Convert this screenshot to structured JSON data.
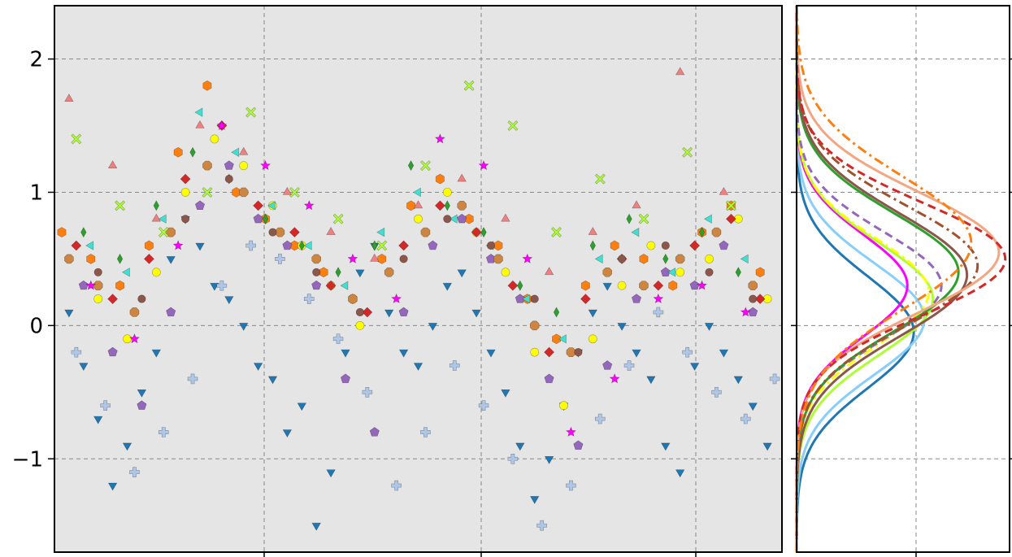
{
  "chart_data": [
    {
      "type": "scatter",
      "title": "",
      "xlabel": "",
      "ylabel": "",
      "ylim": [
        -1.7,
        2.4
      ],
      "grid": true,
      "background": "#e5e5e5",
      "y_ticks": [
        -1,
        0,
        1,
        2
      ],
      "y_tick_labels": [
        "−1",
        "0",
        "1",
        "2"
      ],
      "x_tick_labels": [],
      "series": [
        {
          "color": "#1f77b4",
          "marker": "triangle-down",
          "x": [
            0.02,
            0.04,
            0.06,
            0.08,
            0.1,
            0.12,
            0.14,
            0.16,
            0.18,
            0.2,
            0.22,
            0.24,
            0.26,
            0.28,
            0.3,
            0.32,
            0.34,
            0.36,
            0.38,
            0.4,
            0.42,
            0.44,
            0.46,
            0.48,
            0.5,
            0.52,
            0.54,
            0.56,
            0.58,
            0.6,
            0.62,
            0.64,
            0.66,
            0.68,
            0.7,
            0.72,
            0.74,
            0.76,
            0.78,
            0.8,
            0.82,
            0.84,
            0.86,
            0.88,
            0.9,
            0.92,
            0.94,
            0.96,
            0.98
          ],
          "y": [
            0.1,
            -0.3,
            -0.7,
            -1.2,
            -0.9,
            -0.5,
            -0.2,
            0.5,
            0.8,
            0.6,
            0.3,
            0.2,
            0.0,
            -0.3,
            -0.4,
            -0.8,
            -0.6,
            -1.5,
            -1.1,
            -0.2,
            0.4,
            0.6,
            0.1,
            -0.2,
            -0.3,
            0.0,
            0.3,
            0.4,
            0.1,
            -0.2,
            -0.5,
            -0.9,
            -1.3,
            -1.0,
            -0.6,
            -0.2,
            0.1,
            0.3,
            0.0,
            -0.2,
            -0.4,
            -0.9,
            -1.1,
            -0.3,
            0.0,
            -0.2,
            -0.4,
            -0.6,
            -0.9
          ]
        },
        {
          "color": "#aec7e8",
          "marker": "plus",
          "x": [
            0.03,
            0.07,
            0.11,
            0.15,
            0.19,
            0.23,
            0.27,
            0.31,
            0.35,
            0.39,
            0.43,
            0.47,
            0.51,
            0.55,
            0.59,
            0.63,
            0.67,
            0.71,
            0.75,
            0.79,
            0.83,
            0.87,
            0.91,
            0.95,
            0.99
          ],
          "y": [
            -0.2,
            -0.6,
            -1.1,
            -0.8,
            -0.4,
            0.3,
            0.6,
            0.5,
            0.2,
            -0.1,
            -0.5,
            -1.2,
            -0.8,
            -0.3,
            -0.6,
            -1.0,
            -1.5,
            -1.2,
            -0.7,
            -0.3,
            0.1,
            -0.2,
            -0.5,
            -0.7,
            -0.4
          ]
        },
        {
          "color": "#ff7f0e",
          "marker": "hexagon",
          "x": [
            0.01,
            0.05,
            0.09,
            0.13,
            0.17,
            0.21,
            0.25,
            0.29,
            0.33,
            0.37,
            0.41,
            0.45,
            0.49,
            0.53,
            0.57,
            0.61,
            0.65,
            0.69,
            0.73,
            0.77,
            0.81,
            0.85,
            0.89,
            0.93,
            0.97
          ],
          "y": [
            0.7,
            0.5,
            0.3,
            0.6,
            1.3,
            1.8,
            1.0,
            0.8,
            0.6,
            0.4,
            0.2,
            0.5,
            0.9,
            1.1,
            0.8,
            0.6,
            0.2,
            -0.1,
            0.3,
            0.6,
            0.5,
            0.3,
            0.7,
            0.9,
            0.4
          ]
        },
        {
          "color": "#ffff00",
          "marker": "circle",
          "x": [
            0.02,
            0.06,
            0.1,
            0.14,
            0.18,
            0.22,
            0.26,
            0.3,
            0.34,
            0.38,
            0.42,
            0.46,
            0.5,
            0.54,
            0.58,
            0.62,
            0.66,
            0.7,
            0.74,
            0.78,
            0.82,
            0.86,
            0.9,
            0.94,
            0.98
          ],
          "y": [
            0.5,
            0.2,
            -0.1,
            0.4,
            1.0,
            1.4,
            1.2,
            0.9,
            0.6,
            0.3,
            0.0,
            0.4,
            0.8,
            1.0,
            0.7,
            0.4,
            -0.2,
            -0.6,
            -0.1,
            0.3,
            0.6,
            0.4,
            0.5,
            0.8,
            0.2
          ]
        },
        {
          "color": "#9467bd",
          "marker": "pentagon",
          "x": [
            0.04,
            0.08,
            0.12,
            0.16,
            0.2,
            0.24,
            0.28,
            0.32,
            0.36,
            0.4,
            0.44,
            0.48,
            0.52,
            0.56,
            0.6,
            0.64,
            0.68,
            0.72,
            0.76,
            0.8,
            0.84,
            0.88,
            0.92,
            0.96
          ],
          "y": [
            0.3,
            -0.2,
            -0.6,
            0.1,
            0.9,
            1.2,
            0.8,
            0.6,
            0.3,
            -0.4,
            -0.8,
            0.1,
            0.6,
            0.8,
            0.5,
            0.2,
            -0.4,
            -0.9,
            -0.3,
            0.2,
            0.4,
            0.3,
            0.6,
            0.1
          ]
        },
        {
          "color": "#d62728",
          "marker": "diamond",
          "x": [
            0.03,
            0.08,
            0.13,
            0.18,
            0.23,
            0.28,
            0.33,
            0.38,
            0.43,
            0.48,
            0.53,
            0.58,
            0.63,
            0.68,
            0.73,
            0.78,
            0.83,
            0.88,
            0.93,
            0.97
          ],
          "y": [
            0.6,
            0.2,
            0.5,
            1.1,
            1.5,
            0.9,
            0.7,
            0.3,
            0.1,
            0.6,
            0.9,
            0.7,
            0.3,
            -0.2,
            0.2,
            0.5,
            0.3,
            0.6,
            0.8,
            0.2
          ]
        },
        {
          "color": "#cd853f",
          "marker": "octagon",
          "x": [
            0.02,
            0.06,
            0.11,
            0.16,
            0.21,
            0.26,
            0.31,
            0.36,
            0.41,
            0.46,
            0.51,
            0.56,
            0.61,
            0.66,
            0.71,
            0.76,
            0.81,
            0.86,
            0.91,
            0.96
          ],
          "y": [
            0.5,
            0.3,
            0.1,
            0.7,
            1.2,
            1.0,
            0.7,
            0.5,
            0.2,
            0.4,
            0.7,
            0.9,
            0.5,
            0.0,
            -0.2,
            0.4,
            0.3,
            0.5,
            0.7,
            0.3
          ]
        },
        {
          "color": "#40e0d0",
          "marker": "triangle-left",
          "x": [
            0.05,
            0.1,
            0.15,
            0.2,
            0.25,
            0.3,
            0.35,
            0.4,
            0.45,
            0.5,
            0.55,
            0.6,
            0.65,
            0.7,
            0.75,
            0.8,
            0.85,
            0.9,
            0.95
          ],
          "y": [
            0.6,
            0.4,
            0.8,
            1.6,
            1.3,
            0.9,
            0.6,
            0.3,
            0.7,
            1.0,
            0.8,
            0.6,
            0.2,
            -0.1,
            0.5,
            0.7,
            0.4,
            0.8,
            0.5
          ]
        },
        {
          "color": "#2ca02c",
          "marker": "thin-diamond",
          "x": [
            0.04,
            0.09,
            0.14,
            0.19,
            0.24,
            0.29,
            0.34,
            0.39,
            0.44,
            0.49,
            0.54,
            0.59,
            0.64,
            0.69,
            0.74,
            0.79,
            0.84,
            0.89,
            0.94
          ],
          "y": [
            0.7,
            0.5,
            0.9,
            1.3,
            1.1,
            0.8,
            0.6,
            0.4,
            0.6,
            1.2,
            0.9,
            0.7,
            0.3,
            0.1,
            0.6,
            0.8,
            0.5,
            0.7,
            0.4
          ]
        },
        {
          "color": "#8c564b",
          "marker": "club",
          "x": [
            0.06,
            0.12,
            0.18,
            0.24,
            0.3,
            0.36,
            0.42,
            0.48,
            0.54,
            0.6,
            0.66,
            0.72,
            0.78,
            0.84,
            0.9,
            0.96
          ],
          "y": [
            0.4,
            0.2,
            0.8,
            1.1,
            0.7,
            0.4,
            0.1,
            0.5,
            0.8,
            0.6,
            0.2,
            -0.2,
            0.5,
            0.6,
            0.4,
            0.2
          ]
        },
        {
          "color": "#ff00ff",
          "marker": "star",
          "x": [
            0.05,
            0.11,
            0.17,
            0.23,
            0.29,
            0.35,
            0.41,
            0.47,
            0.53,
            0.59,
            0.65,
            0.71,
            0.77,
            0.83,
            0.89,
            0.95
          ],
          "y": [
            0.3,
            -0.1,
            0.6,
            1.5,
            1.2,
            0.9,
            0.5,
            0.2,
            1.4,
            1.2,
            0.5,
            -0.8,
            -0.4,
            0.2,
            0.3,
            0.1
          ]
        },
        {
          "color": "#adff2f",
          "marker": "x-filled",
          "x": [
            0.03,
            0.09,
            0.15,
            0.21,
            0.27,
            0.33,
            0.39,
            0.45,
            0.51,
            0.57,
            0.63,
            0.69,
            0.75,
            0.81,
            0.87,
            0.93
          ],
          "y": [
            1.4,
            0.9,
            0.7,
            1.0,
            1.6,
            1.0,
            0.8,
            0.6,
            1.2,
            1.8,
            1.5,
            0.7,
            1.1,
            0.8,
            1.3,
            0.9
          ]
        },
        {
          "color": "#f08080",
          "marker": "triangle-up",
          "x": [
            0.02,
            0.08,
            0.14,
            0.2,
            0.26,
            0.32,
            0.38,
            0.44,
            0.5,
            0.56,
            0.62,
            0.68,
            0.74,
            0.8,
            0.86,
            0.92
          ],
          "y": [
            1.7,
            1.2,
            0.8,
            1.5,
            1.3,
            1.0,
            0.7,
            0.5,
            0.9,
            1.1,
            0.8,
            0.4,
            0.7,
            0.9,
            1.9,
            1.0
          ]
        }
      ]
    },
    {
      "type": "line",
      "title": "",
      "xlabel": "",
      "ylabel": "",
      "ylim": [
        -1.7,
        2.4
      ],
      "grid": true,
      "background": "#ffffff",
      "series": [
        {
          "color": "#1f77b4",
          "style": "solid",
          "mean": -0.05,
          "std": 0.42,
          "peak": 0.55
        },
        {
          "color": "#87cefa",
          "style": "solid",
          "mean": 0.05,
          "std": 0.42,
          "peak": 0.6
        },
        {
          "color": "#ff00ff",
          "style": "solid",
          "mean": 0.3,
          "std": 0.38,
          "peak": 0.52
        },
        {
          "color": "#adff2f",
          "style": "solid",
          "mean": 0.2,
          "std": 0.42,
          "peak": 0.64
        },
        {
          "color": "#ffff00",
          "style": "dashdot",
          "mean": 0.25,
          "std": 0.4,
          "peak": 0.62
        },
        {
          "color": "#9467bd",
          "style": "dashed",
          "mean": 0.3,
          "std": 0.4,
          "peak": 0.68
        },
        {
          "color": "#2ca02c",
          "style": "solid",
          "mean": 0.4,
          "std": 0.44,
          "peak": 0.76
        },
        {
          "color": "#8c564b",
          "style": "solid",
          "mean": 0.38,
          "std": 0.46,
          "peak": 0.8
        },
        {
          "color": "#a0522d",
          "style": "dashdot",
          "mean": 0.45,
          "std": 0.45,
          "peak": 0.85
        },
        {
          "color": "#f4a582",
          "style": "solid",
          "mean": 0.55,
          "std": 0.45,
          "peak": 0.95
        },
        {
          "color": "#d62728",
          "style": "dashed",
          "mean": 0.5,
          "std": 0.42,
          "peak": 0.98
        },
        {
          "color": "#ff7f0e",
          "style": "dashdot",
          "mean": 0.62,
          "std": 0.5,
          "peak": 0.82
        }
      ]
    }
  ]
}
